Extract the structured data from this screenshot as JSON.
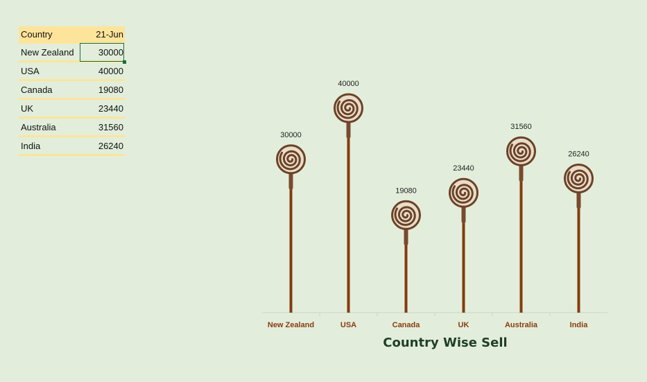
{
  "table": {
    "header": {
      "country": "Country",
      "date": "21-Jun"
    },
    "rows": [
      {
        "country": "New Zealand",
        "value": "30000"
      },
      {
        "country": "USA",
        "value": "40000"
      },
      {
        "country": "Canada",
        "value": "19080"
      },
      {
        "country": "UK",
        "value": "23440"
      },
      {
        "country": "Australia",
        "value": "31560"
      },
      {
        "country": "India",
        "value": "26240"
      }
    ],
    "selected_row": 0
  },
  "colors": {
    "background": "#e2eedb",
    "header_fill": "#fde49b",
    "stem": "#843c0c",
    "candy": "#6b4226",
    "category_text": "#8b3a0e",
    "title_text": "#1f3e28",
    "selection": "#1e6b3a"
  },
  "chart_data": {
    "type": "bar",
    "style": "lollipop with spiral candy heads",
    "title": "Country Wise Sell",
    "categories": [
      "New Zealand",
      "USA",
      "Canada",
      "UK",
      "Australia",
      "India"
    ],
    "values": [
      30000,
      40000,
      19080,
      23440,
      31560,
      26240
    ],
    "data_labels": [
      "30000",
      "40000",
      "19080",
      "23440",
      "31560",
      "26240"
    ],
    "ylim": [
      0,
      48000
    ],
    "grid": false,
    "legend": "none",
    "xlabel": "",
    "ylabel": ""
  }
}
